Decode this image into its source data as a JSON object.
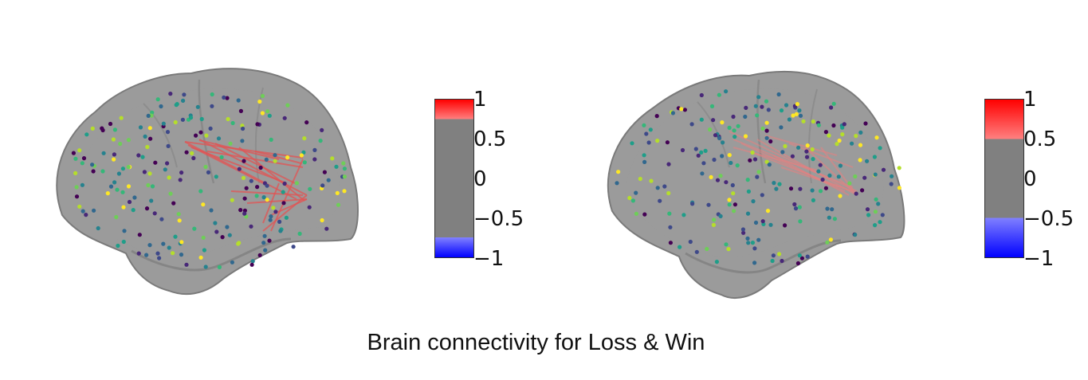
{
  "caption": "Brain connectivity for Loss & Win",
  "panels": [
    {
      "colorbar": {
        "ticks": [
          "1",
          "0.5",
          "0",
          "−0.5",
          "−1"
        ],
        "range": [
          -1,
          1
        ],
        "threshold_positive": 0.75,
        "threshold_negative": -0.75
      }
    },
    {
      "colorbar": {
        "ticks": [
          "1",
          "0.5",
          "0",
          "−0.5",
          "−1"
        ],
        "range": [
          -1,
          1
        ],
        "threshold_positive": 0.5,
        "threshold_negative": -0.5
      }
    }
  ],
  "colors": {
    "brain_fill": "#8f8f8f",
    "edge": "#e25454",
    "positive": "#ff0000",
    "negative": "#0000ff",
    "neutral": "#808080",
    "nodes": [
      "#fde725",
      "#b5de2b",
      "#6ece58",
      "#35b779",
      "#1f9e89",
      "#26828e",
      "#31688e",
      "#3e4989",
      "#482878",
      "#440154"
    ]
  }
}
